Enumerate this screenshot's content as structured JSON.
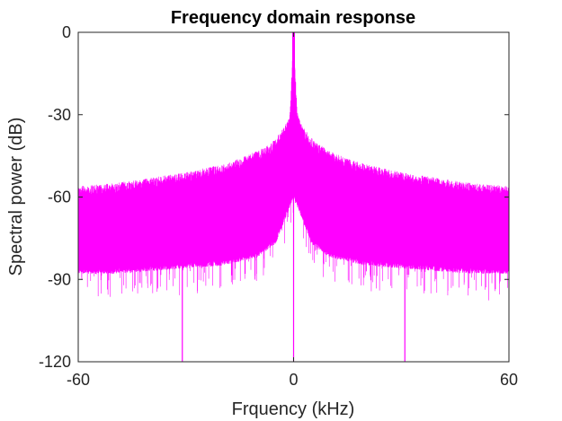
{
  "chart_data": {
    "type": "line",
    "title": "Frequency domain response",
    "xlabel": "Frquency (kHz)",
    "ylabel": "Spectral power (dB)",
    "xlim": [
      -60,
      60
    ],
    "ylim": [
      -120,
      0
    ],
    "xticks": [
      "-60",
      "0",
      "60"
    ],
    "yticks": [
      "0",
      "-30",
      "-60",
      "-90",
      "-120"
    ],
    "grid": false,
    "series": [
      {
        "color": "#ff00ff",
        "peak": {
          "x": 0,
          "y": 0
        },
        "upper_envelope": {
          "x": [
            -60,
            -50,
            -40,
            -30,
            -20,
            -15,
            -10,
            -6,
            -4,
            -2,
            -1,
            0,
            1,
            2,
            4,
            6,
            10,
            15,
            20,
            30,
            40,
            50,
            60
          ],
          "y": [
            -56,
            -55,
            -53,
            -51,
            -48,
            -46,
            -43,
            -40,
            -37,
            -33,
            -29,
            0,
            -29,
            -33,
            -37,
            -40,
            -43,
            -46,
            -48,
            -51,
            -53,
            -55,
            -56
          ]
        },
        "lower_envelope": {
          "x": [
            -60,
            -50,
            -40,
            -30,
            -20,
            -10,
            -5,
            -2,
            0,
            2,
            5,
            10,
            20,
            30,
            40,
            50,
            60
          ],
          "y": [
            -86,
            -86,
            -85,
            -84,
            -83,
            -80,
            -75,
            -65,
            -58,
            -65,
            -75,
            -80,
            -83,
            -84,
            -85,
            -86,
            -86
          ]
        },
        "deep_nulls": [
          {
            "x": -31,
            "y": -120
          },
          {
            "x": 0,
            "y": -120
          },
          {
            "x": 31,
            "y": -120
          }
        ]
      }
    ]
  }
}
